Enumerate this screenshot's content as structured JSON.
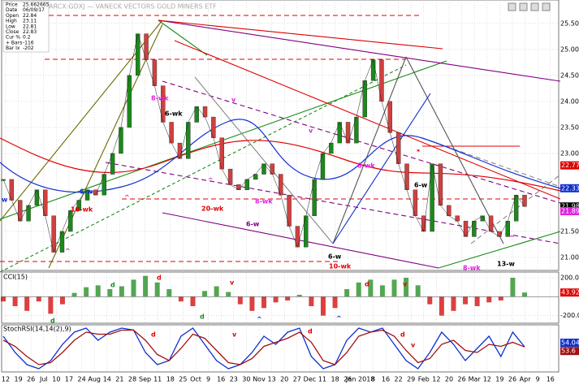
{
  "chart_data": {
    "type": "stock",
    "title": "ARCX:GDXJ — VANECK VECTORS GOLD MINERS ETF",
    "info": [
      {
        "label": "Price",
        "value": "25.662665"
      },
      {
        "label": "Date",
        "value": "06/09/17"
      },
      {
        "label": "Open",
        "value": "22.84"
      },
      {
        "label": "High",
        "value": "23.11"
      },
      {
        "label": "Low",
        "value": "22.81"
      },
      {
        "label": "Close",
        "value": "22.83"
      },
      {
        "label": "Cur %",
        "value": "0.2"
      },
      {
        "label": "+ Bars",
        "value": "-116"
      },
      {
        "label": "Bar Ix",
        "value": "-202"
      }
    ],
    "date_labels": [
      "12",
      "19",
      "26",
      "Jul",
      "10",
      "17",
      "24",
      "Aug",
      "14",
      "21",
      "28",
      "Sep",
      "11",
      "18",
      "25",
      "Oct",
      "9",
      "16",
      "23",
      "30",
      "Nov",
      "13",
      "20",
      "27",
      "Dec",
      "11",
      "18",
      "26",
      "Jan 2018",
      "8",
      "16",
      "22",
      "29",
      "Feb",
      "12",
      "20",
      "26",
      "Mar",
      "12",
      "19",
      "26",
      "Apr",
      "9",
      "16"
    ],
    "price": {
      "color": "#1a8a1a",
      "values": [
        22.5,
        22.1,
        21.7,
        22.0,
        22.3,
        21.8,
        21.1,
        21.5,
        21.9,
        22.1,
        22.3,
        22.2,
        22.6,
        23.0,
        23.5,
        24.5,
        25.3,
        24.8,
        24.3,
        23.6,
        23.2,
        22.9,
        23.6,
        23.9,
        23.7,
        23.3,
        22.7,
        22.4,
        22.3,
        22.5,
        22.6,
        22.8,
        22.6,
        22.2,
        21.6,
        21.2,
        21.8,
        22.5,
        23.0,
        23.2,
        23.6,
        23.2,
        23.7,
        24.4,
        24.8,
        24.0,
        23.4,
        22.8,
        22.3,
        21.8,
        21.5,
        22.8,
        22.0,
        21.8,
        21.7,
        21.4,
        21.7,
        21.8,
        21.5,
        21.4,
        21.7,
        22.2,
        21.98
      ],
      "ylim": [
        20.75,
        25.95
      ],
      "yticks": [
        {
          "value": 21,
          "label": "21.00"
        },
        {
          "value": 21.5,
          "label": "21.50"
        },
        {
          "value": 23,
          "label": "23.00"
        },
        {
          "value": 23.5,
          "label": "23.50"
        },
        {
          "value": 24,
          "label": "24.00"
        },
        {
          "value": 24.5,
          "label": "24.50"
        },
        {
          "value": 25,
          "label": "25.00"
        },
        {
          "value": 25.5,
          "label": "25.50"
        }
      ],
      "tags": [
        {
          "value": 22.77,
          "color": "#e00000"
        },
        {
          "value": 22.33,
          "color": "#1030d0"
        },
        {
          "value": 21.98,
          "color": "#000000"
        },
        {
          "value": 21.89,
          "color": "#e020e0"
        }
      ]
    },
    "annotations": [
      {
        "text": "8-wk",
        "color": "#e020e0"
      },
      {
        "text": "6-wk",
        "color": "#000000"
      },
      {
        "text": "6-w",
        "color": "#1030d0"
      },
      {
        "text": "10-wk",
        "color": "#e00000"
      },
      {
        "text": "w",
        "color": "#1030d0"
      },
      {
        "text": "^",
        "color": "#e020e0"
      },
      {
        "text": "^",
        "color": "#e020e0"
      },
      {
        "text": "^",
        "color": "#e020e0"
      },
      {
        "text": "v",
        "color": "#e020e0"
      },
      {
        "text": "20-wk",
        "color": "#e00000"
      },
      {
        "text": "8-wk",
        "color": "#e020e0"
      },
      {
        "text": "6-w",
        "color": "#800080"
      },
      {
        "text": "v",
        "color": "#e020e0"
      },
      {
        "text": "6-w",
        "color": "#000000"
      },
      {
        "text": "10-wk",
        "color": "#e00000"
      },
      {
        "text": "8-wk",
        "color": "#e020e0"
      },
      {
        "text": "*",
        "color": "#e00000"
      },
      {
        "text": "6-w",
        "color": "#000000"
      },
      {
        "text": "8-wk",
        "color": "#e020e0"
      },
      {
        "text": "13-w",
        "color": "#000000"
      },
      {
        "text": "^",
        "color": "#e020e0"
      },
      {
        "text": "d",
        "color": "#e00000"
      },
      {
        "text": "d",
        "color": "#1a8a1a"
      },
      {
        "text": "v",
        "color": "#e00000"
      },
      {
        "text": "d",
        "color": "#1a8a1a"
      },
      {
        "text": "d",
        "color": "#1a8a1a"
      },
      {
        "text": "^",
        "color": "#1030d0"
      },
      {
        "text": "^",
        "color": "#1030d0"
      },
      {
        "text": "d",
        "color": "#e00000"
      },
      {
        "text": "v",
        "color": "#e00000"
      },
      {
        "text": "d",
        "color": "#e00000"
      },
      {
        "text": "v",
        "color": "#e00000"
      },
      {
        "text": "d",
        "color": "#e00000"
      },
      {
        "text": "d",
        "color": "#e00000"
      },
      {
        "text": "v",
        "color": "#e00000"
      }
    ],
    "cci": {
      "label": "CCI(15)",
      "pos_color": "#1a8a1a",
      "neg_color": "#d00000",
      "values": [
        -50,
        -100,
        -150,
        -50,
        -180,
        -80,
        40,
        100,
        120,
        80,
        110,
        180,
        220,
        150,
        80,
        -50,
        -100,
        60,
        110,
        50,
        -80,
        -150,
        -120,
        -60,
        -40,
        20,
        -100,
        -200,
        -120,
        80,
        150,
        180,
        120,
        180,
        200,
        120,
        -80,
        -200,
        -150,
        -80,
        -100,
        -60,
        -40,
        200,
        44
      ],
      "ylim": [
        -280,
        260
      ],
      "yticks": [
        {
          "value": 200,
          "label": "200.0"
        },
        {
          "value": -200,
          "label": "-200.0"
        }
      ],
      "tag": {
        "value": 43.92,
        "color": "#e00000"
      }
    },
    "stoch": {
      "label": "StochRSI(14,14(2),9)",
      "series": [
        {
          "color": "#1030d0",
          "values": [
            80,
            40,
            10,
            0,
            20,
            60,
            90,
            100,
            70,
            90,
            100,
            95,
            40,
            10,
            20,
            80,
            100,
            60,
            20,
            0,
            10,
            40,
            80,
            60,
            90,
            100,
            30,
            0,
            10,
            70,
            100,
            90,
            100,
            60,
            20,
            0,
            40,
            90,
            60,
            20,
            50,
            80,
            30,
            90,
            54.04
          ]
        },
        {
          "color": "#a01010",
          "values": [
            70,
            55,
            30,
            10,
            15,
            40,
            70,
            90,
            85,
            85,
            95,
            95,
            70,
            35,
            20,
            50,
            85,
            75,
            45,
            15,
            10,
            25,
            55,
            65,
            75,
            90,
            65,
            20,
            10,
            40,
            80,
            90,
            95,
            80,
            45,
            15,
            25,
            60,
            70,
            45,
            40,
            60,
            55,
            65,
            53.6
          ]
        }
      ],
      "ylim": [
        -8,
        108
      ]
    }
  }
}
